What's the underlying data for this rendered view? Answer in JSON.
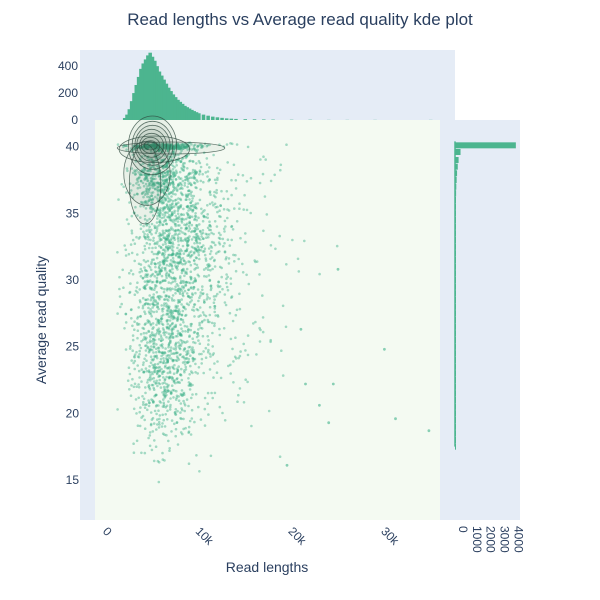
{
  "chart_data": {
    "type": "scatter",
    "title": "Read lengths vs Average read quality kde plot",
    "xlabel": "Read lengths",
    "ylabel": "Average read quality",
    "xlim": [
      -1200,
      36000
    ],
    "ylim": [
      12,
      42
    ],
    "x_ticks": [
      {
        "value": 0,
        "label": "0"
      },
      {
        "value": 10000,
        "label": "10k"
      },
      {
        "value": 20000,
        "label": "20k"
      },
      {
        "value": 30000,
        "label": "30k"
      }
    ],
    "y_ticks": [
      {
        "value": 15,
        "label": "15"
      },
      {
        "value": 20,
        "label": "20"
      },
      {
        "value": 25,
        "label": "25"
      },
      {
        "value": 30,
        "label": "30"
      },
      {
        "value": 35,
        "label": "35"
      },
      {
        "value": 40,
        "label": "40"
      }
    ],
    "top_marginal": {
      "type": "histogram",
      "ylim": [
        0,
        520
      ],
      "ticks": [
        {
          "value": 0,
          "label": "0"
        },
        {
          "value": 200,
          "label": "200"
        },
        {
          "value": 400,
          "label": "400"
        }
      ],
      "bins": [
        {
          "x": 2000,
          "count": 15
        },
        {
          "x": 2250,
          "count": 40
        },
        {
          "x": 2500,
          "count": 80
        },
        {
          "x": 2750,
          "count": 140
        },
        {
          "x": 3000,
          "count": 200
        },
        {
          "x": 3250,
          "count": 260
        },
        {
          "x": 3500,
          "count": 320
        },
        {
          "x": 3750,
          "count": 380
        },
        {
          "x": 4000,
          "count": 420
        },
        {
          "x": 4250,
          "count": 450
        },
        {
          "x": 4500,
          "count": 480
        },
        {
          "x": 4750,
          "count": 500
        },
        {
          "x": 5000,
          "count": 470
        },
        {
          "x": 5250,
          "count": 440
        },
        {
          "x": 5500,
          "count": 400
        },
        {
          "x": 5750,
          "count": 360
        },
        {
          "x": 6000,
          "count": 330
        },
        {
          "x": 6250,
          "count": 300
        },
        {
          "x": 6500,
          "count": 270
        },
        {
          "x": 6750,
          "count": 240
        },
        {
          "x": 7000,
          "count": 215
        },
        {
          "x": 7250,
          "count": 190
        },
        {
          "x": 7500,
          "count": 170
        },
        {
          "x": 7750,
          "count": 150
        },
        {
          "x": 8000,
          "count": 135
        },
        {
          "x": 8250,
          "count": 120
        },
        {
          "x": 8500,
          "count": 105
        },
        {
          "x": 8750,
          "count": 95
        },
        {
          "x": 9000,
          "count": 85
        },
        {
          "x": 9250,
          "count": 75
        },
        {
          "x": 9500,
          "count": 66
        },
        {
          "x": 9750,
          "count": 58
        },
        {
          "x": 10000,
          "count": 50
        },
        {
          "x": 10500,
          "count": 40
        },
        {
          "x": 11000,
          "count": 32
        },
        {
          "x": 11500,
          "count": 25
        },
        {
          "x": 12000,
          "count": 20
        },
        {
          "x": 12500,
          "count": 16
        },
        {
          "x": 13000,
          "count": 12
        },
        {
          "x": 13500,
          "count": 10
        },
        {
          "x": 14000,
          "count": 8
        },
        {
          "x": 15000,
          "count": 6
        },
        {
          "x": 16000,
          "count": 5
        },
        {
          "x": 17000,
          "count": 4
        },
        {
          "x": 18000,
          "count": 3
        },
        {
          "x": 20000,
          "count": 2
        },
        {
          "x": 22000,
          "count": 2
        },
        {
          "x": 24000,
          "count": 1
        },
        {
          "x": 26000,
          "count": 1
        },
        {
          "x": 29000,
          "count": 1
        },
        {
          "x": 35000,
          "count": 1
        }
      ]
    },
    "right_marginal": {
      "type": "histogram",
      "xlim": [
        0,
        4700
      ],
      "ticks": [
        {
          "value": 0,
          "label": "0"
        },
        {
          "value": 1000,
          "label": "1000"
        },
        {
          "value": 2000,
          "label": "2000"
        },
        {
          "value": 3000,
          "label": "3000"
        },
        {
          "value": 4000,
          "label": "4000"
        }
      ],
      "bins": [
        {
          "y": 40.1,
          "count": 4400
        },
        {
          "y": 39.6,
          "count": 400
        },
        {
          "y": 39.0,
          "count": 260
        },
        {
          "y": 38.5,
          "count": 200
        },
        {
          "y": 38.0,
          "count": 150
        },
        {
          "y": 37.5,
          "count": 120
        },
        {
          "y": 37.0,
          "count": 95
        },
        {
          "y": 36.5,
          "count": 80
        },
        {
          "y": 36.0,
          "count": 70
        },
        {
          "y": 35.5,
          "count": 60
        },
        {
          "y": 35.0,
          "count": 55
        },
        {
          "y": 34.5,
          "count": 50
        },
        {
          "y": 34.0,
          "count": 48
        },
        {
          "y": 33.5,
          "count": 45
        },
        {
          "y": 33.0,
          "count": 42
        },
        {
          "y": 32.5,
          "count": 40
        },
        {
          "y": 32.0,
          "count": 40
        },
        {
          "y": 31.5,
          "count": 38
        },
        {
          "y": 31.0,
          "count": 70
        },
        {
          "y": 30.5,
          "count": 35
        },
        {
          "y": 30.0,
          "count": 34
        },
        {
          "y": 29.5,
          "count": 33
        },
        {
          "y": 29.0,
          "count": 32
        },
        {
          "y": 28.5,
          "count": 31
        },
        {
          "y": 28.0,
          "count": 30
        },
        {
          "y": 27.5,
          "count": 29
        },
        {
          "y": 27.0,
          "count": 28
        },
        {
          "y": 26.5,
          "count": 27
        },
        {
          "y": 26.0,
          "count": 26
        },
        {
          "y": 25.5,
          "count": 26
        },
        {
          "y": 25.0,
          "count": 25
        },
        {
          "y": 24.5,
          "count": 24
        },
        {
          "y": 24.0,
          "count": 23
        },
        {
          "y": 23.5,
          "count": 22
        },
        {
          "y": 23.0,
          "count": 21
        },
        {
          "y": 22.5,
          "count": 20
        },
        {
          "y": 22.0,
          "count": 19
        },
        {
          "y": 21.5,
          "count": 18
        },
        {
          "y": 21.0,
          "count": 17
        },
        {
          "y": 20.5,
          "count": 16
        },
        {
          "y": 20.0,
          "count": 15
        },
        {
          "y": 19.5,
          "count": 14
        },
        {
          "y": 19.0,
          "count": 12
        },
        {
          "y": 18.5,
          "count": 10
        },
        {
          "y": 18.0,
          "count": 8
        },
        {
          "y": 17.5,
          "count": 6
        }
      ]
    },
    "scatter_clusters": [
      {
        "x_mean": 5200,
        "x_sd": 2400,
        "y_mean": 40.0,
        "y_sd": 0.12,
        "n": 240
      },
      {
        "x_mean": 5500,
        "x_sd": 2600,
        "y_mean": 37.8,
        "y_sd": 1.4,
        "n": 520
      },
      {
        "x_mean": 6500,
        "x_sd": 3200,
        "y_mean": 33.5,
        "y_sd": 2.6,
        "n": 700
      },
      {
        "x_mean": 5800,
        "x_sd": 2800,
        "y_mean": 28.0,
        "y_sd": 3.2,
        "n": 640
      },
      {
        "x_mean": 5600,
        "x_sd": 2600,
        "y_mean": 22.5,
        "y_sd": 2.6,
        "n": 440
      },
      {
        "x_mean": 10000,
        "x_sd": 5000,
        "y_mean": 30.0,
        "y_sd": 6.0,
        "n": 260
      }
    ],
    "outliers": [
      {
        "x": 34800,
        "y": 18.7
      },
      {
        "x": 31200,
        "y": 19.6
      },
      {
        "x": 30000,
        "y": 24.8
      },
      {
        "x": 25000,
        "y": 30.8
      },
      {
        "x": 24500,
        "y": 22.2
      },
      {
        "x": 24000,
        "y": 19.3
      },
      {
        "x": 23000,
        "y": 20.6
      },
      {
        "x": 21500,
        "y": 22.2
      },
      {
        "x": 21000,
        "y": 26.3
      },
      {
        "x": 19500,
        "y": 16.1
      }
    ],
    "kde_contours": [
      {
        "x": 5000,
        "y": 40.1,
        "rx": 2600,
        "ry": 2.2
      },
      {
        "x": 5000,
        "y": 40.1,
        "rx": 2200,
        "ry": 1.8
      },
      {
        "x": 5000,
        "y": 40.1,
        "rx": 1900,
        "ry": 1.5
      },
      {
        "x": 4900,
        "y": 40.1,
        "rx": 1600,
        "ry": 1.2
      },
      {
        "x": 4900,
        "y": 40.1,
        "rx": 1300,
        "ry": 0.9
      },
      {
        "x": 4800,
        "y": 40.1,
        "rx": 1000,
        "ry": 0.6
      },
      {
        "x": 4800,
        "y": 40.1,
        "rx": 700,
        "ry": 0.35
      },
      {
        "x": 5200,
        "y": 39.8,
        "rx": 3800,
        "ry": 1.0
      },
      {
        "x": 7000,
        "y": 39.9,
        "rx": 5800,
        "ry": 0.45
      },
      {
        "x": 4200,
        "y": 37.2,
        "rx": 1700,
        "ry": 3.0
      },
      {
        "x": 4400,
        "y": 38.0,
        "rx": 2500,
        "ry": 2.4
      }
    ],
    "colors": {
      "points": "#3fb28a",
      "bars": "#4cb58f",
      "plot_bg": "#f4faf2",
      "panel_bg": "#e5ecf6",
      "contour": "#2f4a3f",
      "text": "#2a3f5f"
    }
  }
}
